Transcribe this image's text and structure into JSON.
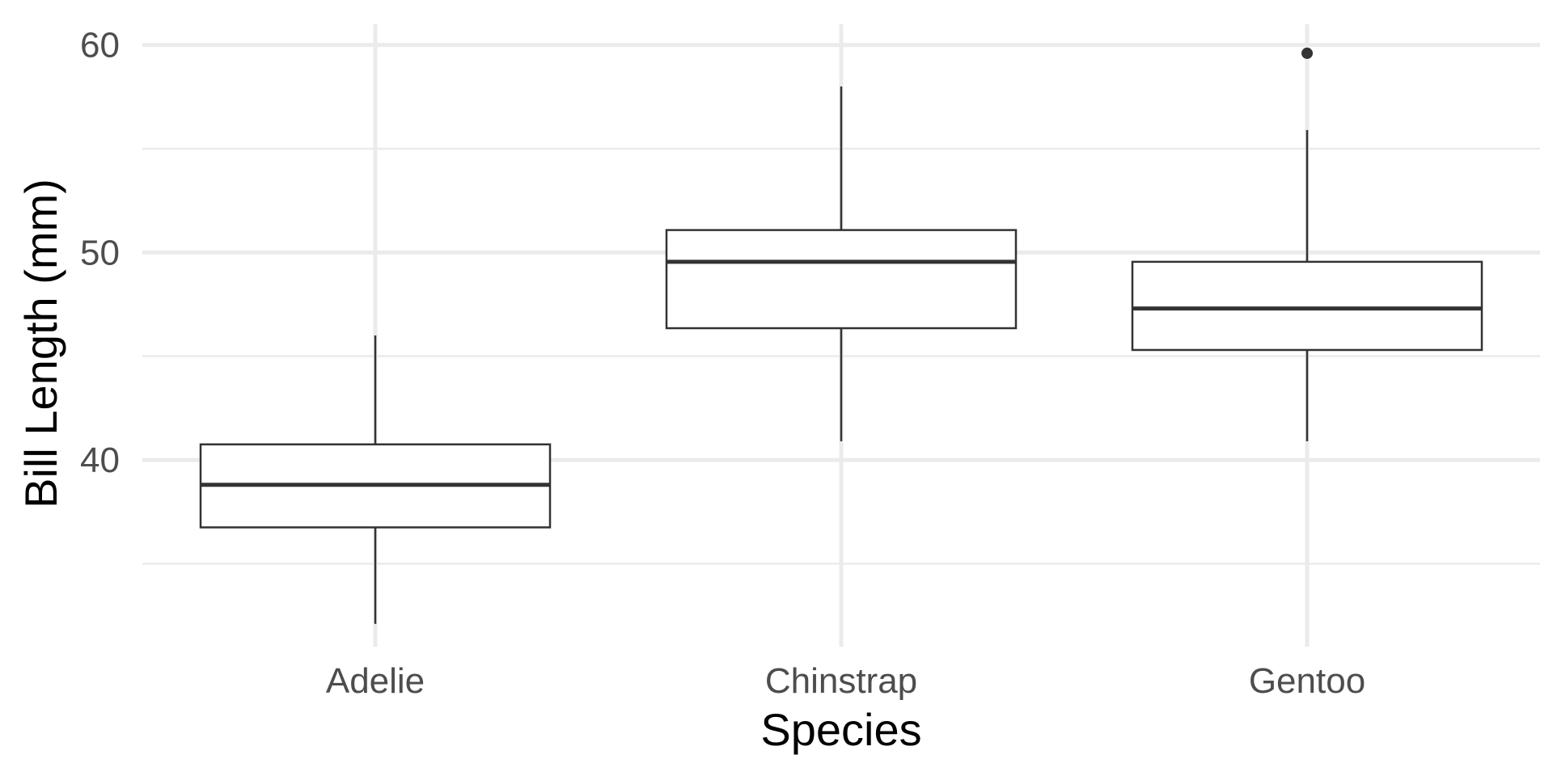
{
  "chart_data": {
    "type": "boxplot",
    "title": "",
    "xlabel": "Species",
    "ylabel": "Bill Length (mm)",
    "categories": [
      "Adelie",
      "Chinstrap",
      "Gentoo"
    ],
    "ylim": [
      31,
      61
    ],
    "y_ticks": [
      40,
      50,
      60
    ],
    "y_minor_ticks": [
      35,
      45,
      55
    ],
    "grid": true,
    "legend": "none",
    "boxes": [
      {
        "category": "Adelie",
        "min": 32.1,
        "q1": 36.75,
        "median": 38.8,
        "q3": 40.75,
        "max": 46.0,
        "outliers": []
      },
      {
        "category": "Chinstrap",
        "min": 40.9,
        "q1": 46.35,
        "median": 49.55,
        "q3": 51.08,
        "max": 58.0,
        "outliers": []
      },
      {
        "category": "Gentoo",
        "min": 40.9,
        "q1": 45.3,
        "median": 47.3,
        "q3": 49.55,
        "max": 55.9,
        "outliers": [
          59.6
        ]
      }
    ],
    "colors": {
      "box_fill": "#ffffff",
      "box_line": "#333333",
      "grid": "#ebebeb",
      "tick_text": "#4d4d4d",
      "title_text": "#000000"
    }
  }
}
